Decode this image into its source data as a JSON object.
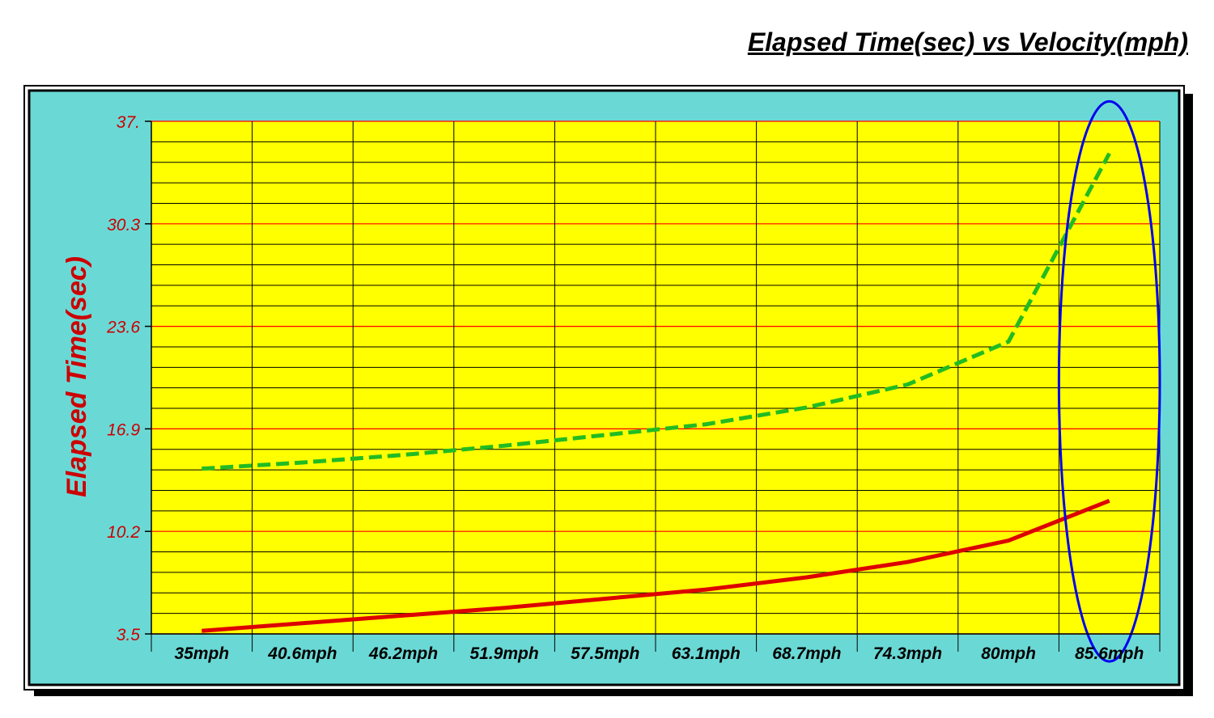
{
  "colors": {
    "frame_bg": "#6ad9d6",
    "plot_bg": "#ffff00",
    "major_grid": "#ff0000",
    "minor_grid": "#000000",
    "tick_label": "#cc0000",
    "x_tick_label": "#000000",
    "highlight_ellipse": "#0000ee"
  },
  "chart_data": {
    "type": "line",
    "title": "Elapsed Time(sec) vs Velocity(mph)",
    "xlabel": "",
    "ylabel": "Elapsed Time(sec)",
    "categories": [
      "35mph",
      "40.6mph",
      "46.2mph",
      "51.9mph",
      "57.5mph",
      "63.1mph",
      "68.7mph",
      "74.3mph",
      "80mph",
      "85.6mph"
    ],
    "ylim": [
      3.5,
      37.0
    ],
    "y_ticks": [
      "37.",
      "30.3",
      "23.6",
      "16.9",
      "10.2",
      "3.5"
    ],
    "grid": true,
    "series": [
      {
        "color": "#22bb22",
        "style": "dashed",
        "values": [
          14.3,
          14.7,
          15.2,
          15.8,
          16.5,
          17.2,
          18.3,
          19.8,
          22.6,
          34.9
        ]
      },
      {
        "color": "#dd0000",
        "style": "solid",
        "values": [
          3.7,
          4.2,
          4.7,
          5.2,
          5.8,
          6.4,
          7.2,
          8.2,
          9.6,
          12.2
        ]
      }
    ],
    "annotations": [
      {
        "type": "ellipse",
        "category_index": 9,
        "y_center": 20.0,
        "y_span": [
          1.7,
          38.3
        ]
      }
    ]
  }
}
